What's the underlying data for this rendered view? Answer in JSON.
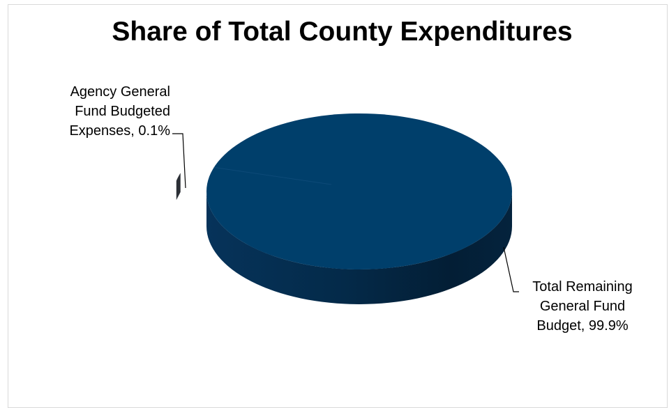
{
  "chart_data": {
    "type": "pie",
    "title": "Share of Total County Expenditures",
    "style": "3d",
    "slices": [
      {
        "label_lines": [
          "Agency General",
          "Fund Budgeted",
          "Expenses, 0.1%"
        ],
        "value": 0.1,
        "color": "#2b2f36",
        "exploded": true
      },
      {
        "label_lines": [
          "Total Remaining",
          "General Fund",
          "Budget, 99.9%"
        ],
        "value": 99.9,
        "color": "#003f6b",
        "exploded": false
      }
    ],
    "legend": "none",
    "colors": {
      "remaining_top": "#003f6b",
      "remaining_side": "#052a47",
      "agency": "#2b2f36"
    }
  }
}
